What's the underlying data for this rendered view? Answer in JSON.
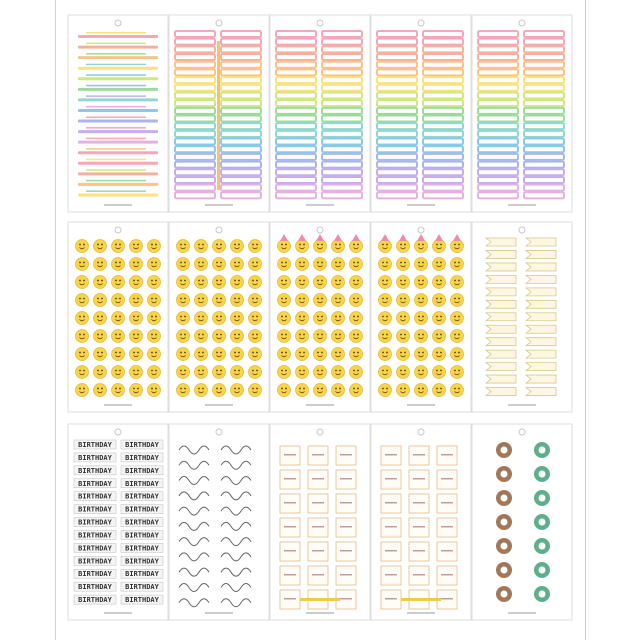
{
  "stickers": {
    "birthday": "BIRTHDAY"
  }
}
